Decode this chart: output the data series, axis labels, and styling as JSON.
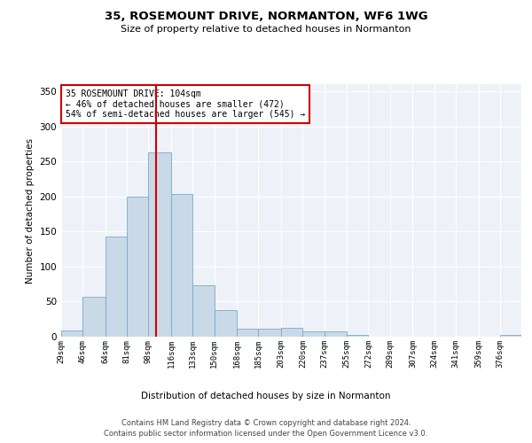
{
  "title1": "35, ROSEMOUNT DRIVE, NORMANTON, WF6 1WG",
  "title2": "Size of property relative to detached houses in Normanton",
  "xlabel": "Distribution of detached houses by size in Normanton",
  "ylabel": "Number of detached properties",
  "bin_labels": [
    "29sqm",
    "46sqm",
    "64sqm",
    "81sqm",
    "98sqm",
    "116sqm",
    "133sqm",
    "150sqm",
    "168sqm",
    "185sqm",
    "203sqm",
    "220sqm",
    "237sqm",
    "255sqm",
    "272sqm",
    "289sqm",
    "307sqm",
    "324sqm",
    "341sqm",
    "359sqm",
    "376sqm"
  ],
  "bar_heights": [
    9,
    57,
    143,
    199,
    263,
    204,
    73,
    38,
    12,
    12,
    13,
    7,
    8,
    3,
    0,
    0,
    0,
    0,
    0,
    0,
    3
  ],
  "bar_color": "#c9d9e8",
  "bar_edge_color": "#7aaac8",
  "vline_x": 104,
  "vline_color": "#cc0000",
  "ylim": [
    0,
    360
  ],
  "yticks": [
    0,
    50,
    100,
    150,
    200,
    250,
    300,
    350
  ],
  "annotation_text": "35 ROSEMOUNT DRIVE: 104sqm\n← 46% of detached houses are smaller (472)\n54% of semi-detached houses are larger (545) →",
  "annotation_box_color": "#ffffff",
  "annotation_box_edge": "#cc0000",
  "footer1": "Contains HM Land Registry data © Crown copyright and database right 2024.",
  "footer2": "Contains public sector information licensed under the Open Government Licence v3.0.",
  "bin_edges": [
    29,
    46,
    64,
    81,
    98,
    116,
    133,
    150,
    168,
    185,
    203,
    220,
    237,
    255,
    272,
    289,
    307,
    324,
    341,
    359,
    376,
    393
  ]
}
